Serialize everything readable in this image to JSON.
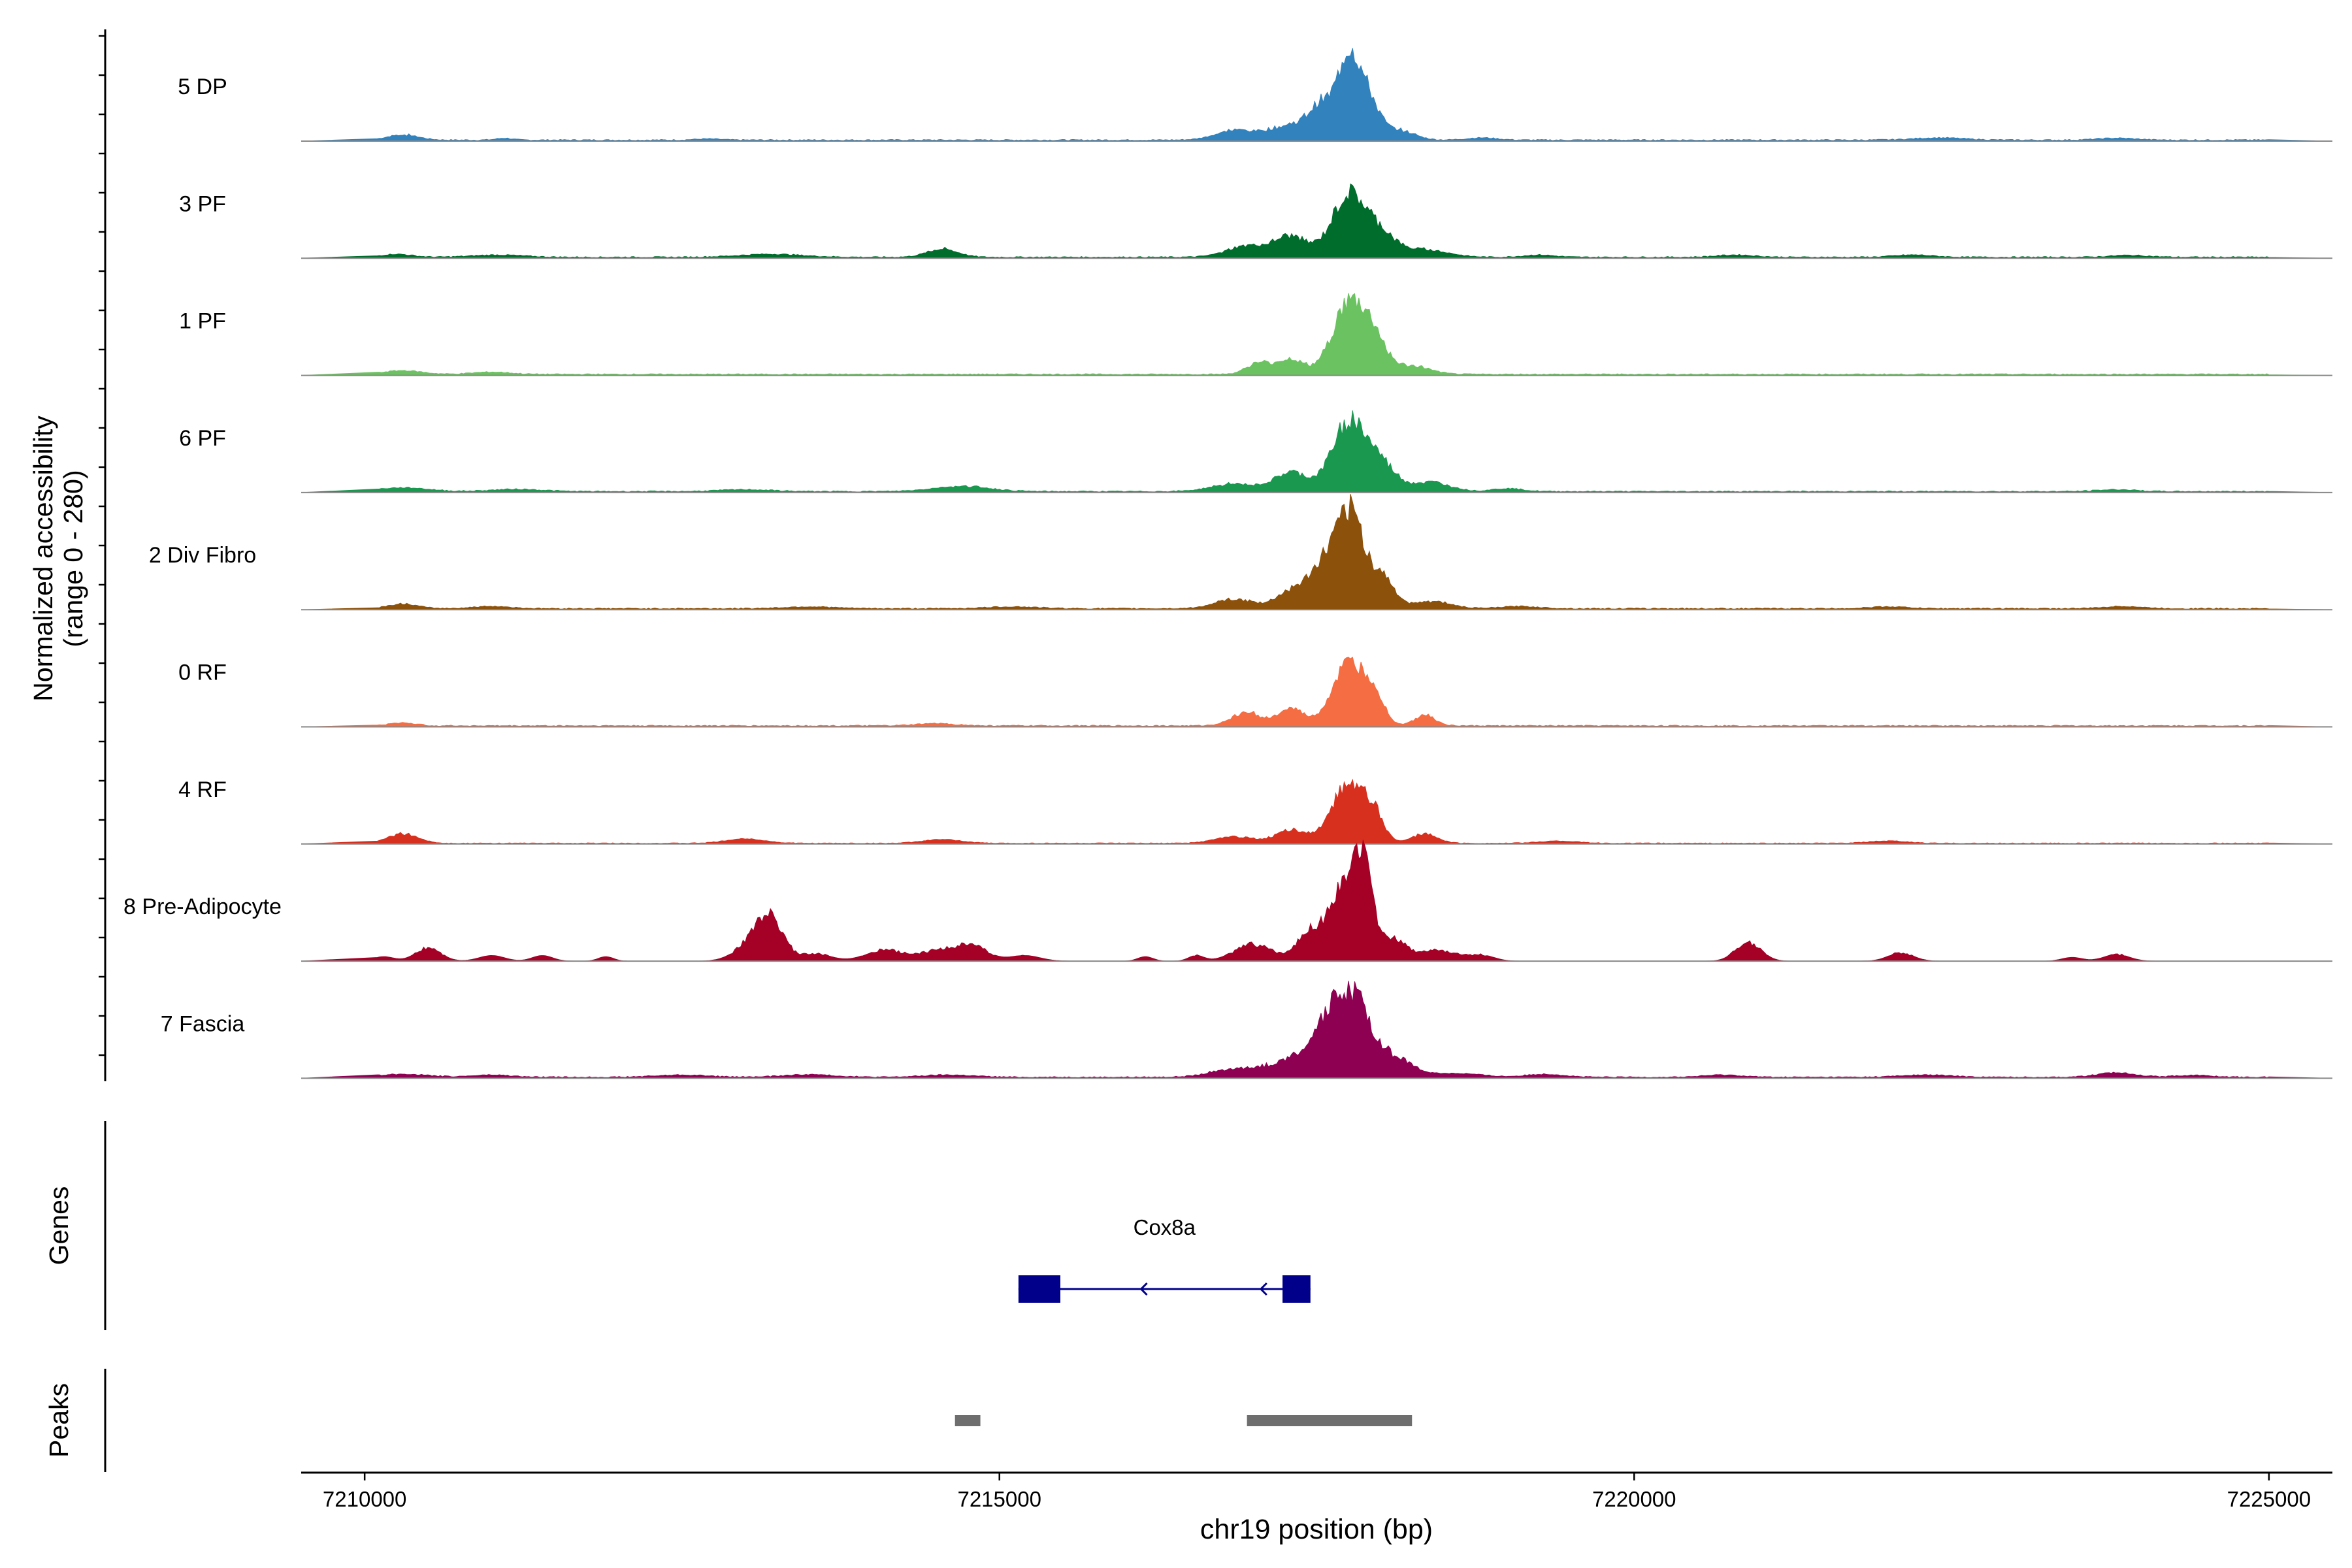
{
  "chart_data": {
    "type": "area",
    "subtype": "coverage-track",
    "region": {
      "chrom": "chr19",
      "start": 7209500,
      "end": 7225500
    },
    "xlabel": "chr19 position (bp)",
    "xticks": [
      7210000,
      7215000,
      7220000,
      7225000
    ],
    "xtick_labels": [
      "7210000",
      "7215000",
      "7220000",
      "7225000"
    ],
    "ylabel_line1": "Normalized accessibility",
    "ylabel_line2": "(range 0 - 280)",
    "ylim": [
      0,
      280
    ],
    "genes_label": "Genes",
    "peaks_label": "Peaks",
    "series": [
      {
        "name": "5 DP",
        "color": "#3182BD",
        "baseline": 3,
        "peaks": [
          [
            7210300,
            120,
            14
          ],
          [
            7211100,
            60,
            5
          ],
          [
            7212700,
            100,
            3
          ],
          [
            7216850,
            150,
            25
          ],
          [
            7217300,
            180,
            40
          ],
          [
            7217550,
            100,
            85
          ],
          [
            7217750,
            80,
            210
          ],
          [
            7217900,
            90,
            110
          ],
          [
            7218150,
            120,
            25
          ],
          [
            7218800,
            120,
            6
          ],
          [
            7222400,
            200,
            6
          ],
          [
            7223800,
            150,
            5
          ]
        ]
      },
      {
        "name": "3 PF",
        "color": "#006D2C",
        "baseline": 3,
        "peaks": [
          [
            7210250,
            120,
            8
          ],
          [
            7211050,
            200,
            6
          ],
          [
            7213200,
            250,
            8
          ],
          [
            7214550,
            120,
            22
          ],
          [
            7216950,
            160,
            30
          ],
          [
            7217300,
            130,
            55
          ],
          [
            7217750,
            130,
            165
          ],
          [
            7218000,
            120,
            60
          ],
          [
            7218350,
            180,
            20
          ],
          [
            7219250,
            120,
            6
          ],
          [
            7220800,
            150,
            6
          ],
          [
            7222200,
            150,
            6
          ],
          [
            7223900,
            150,
            5
          ]
        ]
      },
      {
        "name": "1 PF",
        "color": "#6BC260",
        "baseline": 3,
        "peaks": [
          [
            7210300,
            150,
            10
          ],
          [
            7211000,
            150,
            6
          ],
          [
            7217050,
            100,
            30
          ],
          [
            7217300,
            100,
            40
          ],
          [
            7217750,
            130,
            185
          ],
          [
            7217950,
            100,
            80
          ],
          [
            7218250,
            140,
            22
          ]
        ]
      },
      {
        "name": "6 PF",
        "color": "#1A9850",
        "baseline": 3,
        "peaks": [
          [
            7210300,
            200,
            10
          ],
          [
            7211200,
            200,
            6
          ],
          [
            7213000,
            200,
            5
          ],
          [
            7214700,
            220,
            14
          ],
          [
            7216850,
            180,
            20
          ],
          [
            7217300,
            130,
            50
          ],
          [
            7217750,
            130,
            185
          ],
          [
            7218000,
            120,
            70
          ],
          [
            7218400,
            150,
            25
          ],
          [
            7219000,
            120,
            8
          ],
          [
            7223800,
            150,
            5
          ]
        ]
      },
      {
        "name": "2 Div Fibro",
        "color": "#8C510A",
        "baseline": 3,
        "peaks": [
          [
            7210300,
            120,
            12
          ],
          [
            7211000,
            150,
            6
          ],
          [
            7213500,
            200,
            5
          ],
          [
            7215100,
            200,
            5
          ],
          [
            7216850,
            150,
            25
          ],
          [
            7217300,
            120,
            45
          ],
          [
            7217600,
            130,
            140
          ],
          [
            7217780,
            90,
            205
          ],
          [
            7218000,
            100,
            90
          ],
          [
            7218400,
            150,
            20
          ],
          [
            7219100,
            150,
            6
          ],
          [
            7222000,
            150,
            5
          ],
          [
            7223850,
            150,
            6
          ]
        ]
      },
      {
        "name": "0 RF",
        "color": "#F46D43",
        "baseline": 3,
        "peaks": [
          [
            7210300,
            100,
            8
          ],
          [
            7214500,
            150,
            6
          ],
          [
            7216950,
            120,
            35
          ],
          [
            7217300,
            100,
            45
          ],
          [
            7217750,
            130,
            160
          ],
          [
            7217950,
            80,
            70
          ],
          [
            7218350,
            80,
            30
          ]
        ]
      },
      {
        "name": "4 RF",
        "color": "#D7301F",
        "baseline": 2,
        "peaks": [
          [
            7210300,
            120,
            25
          ],
          [
            7213000,
            150,
            12
          ],
          [
            7214550,
            150,
            10
          ],
          [
            7216850,
            150,
            18
          ],
          [
            7217300,
            120,
            35
          ],
          [
            7217750,
            130,
            160
          ],
          [
            7217950,
            80,
            60
          ],
          [
            7218350,
            100,
            25
          ],
          [
            7219400,
            150,
            6
          ],
          [
            7222000,
            150,
            6
          ]
        ]
      },
      {
        "name": "8 Pre-Adipocyte",
        "color": "#A50026",
        "baseline": 0,
        "peaks": [
          [
            7210150,
            80,
            12
          ],
          [
            7210500,
            100,
            35
          ],
          [
            7211000,
            100,
            15
          ],
          [
            7211400,
            80,
            15
          ],
          [
            7211900,
            60,
            12
          ],
          [
            7213050,
            130,
            45
          ],
          [
            7213200,
            100,
            105
          ],
          [
            7213550,
            120,
            20
          ],
          [
            7214100,
            150,
            30
          ],
          [
            7214550,
            150,
            30
          ],
          [
            7214800,
            120,
            35
          ],
          [
            7215200,
            120,
            15
          ],
          [
            7216150,
            60,
            12
          ],
          [
            7216550,
            60,
            15
          ],
          [
            7217000,
            150,
            45
          ],
          [
            7217450,
            100,
            80
          ],
          [
            7217700,
            100,
            200
          ],
          [
            7217870,
            70,
            250
          ],
          [
            7218100,
            100,
            60
          ],
          [
            7218450,
            150,
            30
          ],
          [
            7218800,
            100,
            15
          ],
          [
            7220900,
            100,
            50
          ],
          [
            7222100,
            100,
            22
          ],
          [
            7223450,
            80,
            10
          ],
          [
            7223800,
            100,
            18
          ]
        ]
      },
      {
        "name": "7 Fascia",
        "color": "#8E0152",
        "baseline": 3,
        "peaks": [
          [
            7210300,
            200,
            8
          ],
          [
            7211000,
            150,
            6
          ],
          [
            7212500,
            200,
            6
          ],
          [
            7213500,
            200,
            7
          ],
          [
            7214600,
            200,
            6
          ],
          [
            7216900,
            200,
            25
          ],
          [
            7217300,
            150,
            40
          ],
          [
            7217600,
            140,
            130
          ],
          [
            7217800,
            130,
            175
          ],
          [
            7218100,
            150,
            50
          ],
          [
            7218600,
            200,
            10
          ],
          [
            7219300,
            150,
            8
          ],
          [
            7220700,
            150,
            6
          ],
          [
            7222300,
            200,
            6
          ],
          [
            7223800,
            150,
            12
          ],
          [
            7224400,
            150,
            5
          ]
        ]
      }
    ],
    "genes": [
      {
        "name": "Cox8a",
        "strand": "-",
        "start": 7215150,
        "end": 7217450,
        "exons": [
          [
            7215150,
            7215480
          ],
          [
            7217230,
            7217450
          ]
        ]
      }
    ],
    "peaks": [
      [
        7214650,
        7214850
      ],
      [
        7216950,
        7218250
      ]
    ]
  }
}
